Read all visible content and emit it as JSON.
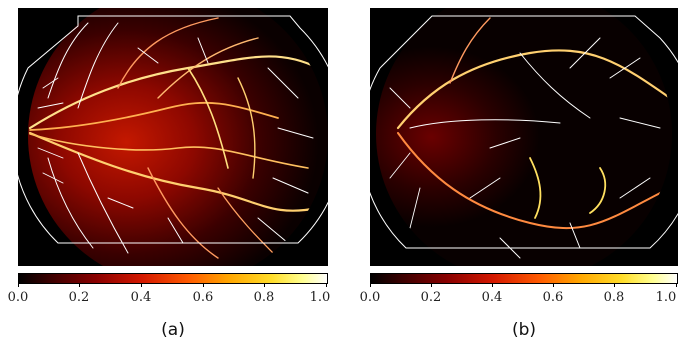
{
  "panels": [
    {
      "caption": "(a)",
      "colorbar_ticks": [
        "0.0",
        "0.2",
        "0.4",
        "0.6",
        "0.8",
        "1.0"
      ]
    },
    {
      "caption": "(b)",
      "colorbar_ticks": [
        "0.0",
        "0.2",
        "0.4",
        "0.6",
        "0.8",
        "1.0"
      ]
    }
  ],
  "colormap": [
    "#000000",
    "#8a0000",
    "#d41800",
    "#ff5a00",
    "#ffa500",
    "#ffdd2a",
    "#ffffff"
  ]
}
